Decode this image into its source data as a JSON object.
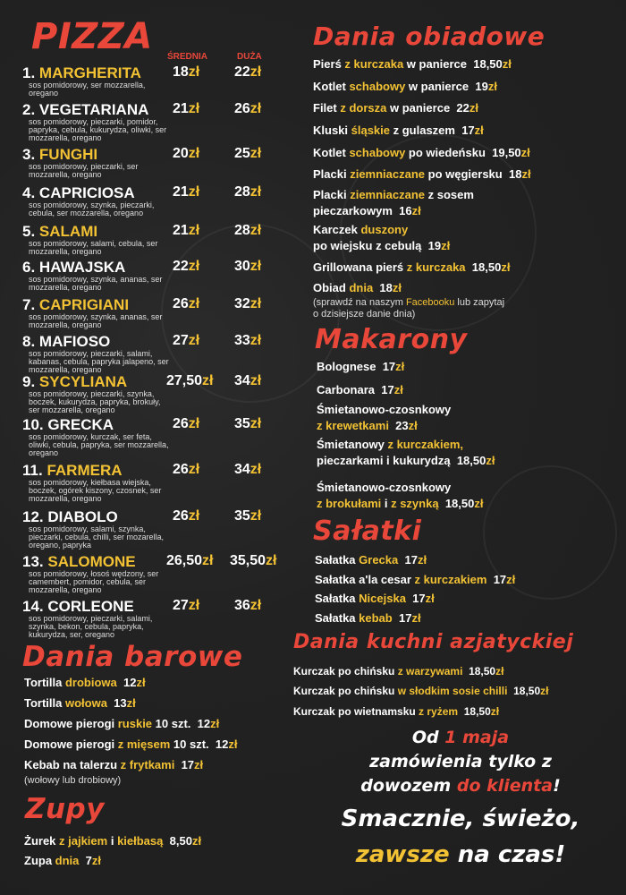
{
  "colors": {
    "accent_red": "#e8473a",
    "highlight_yellow": "#f3c234",
    "background": "#222222"
  },
  "pizza": {
    "title": "PIZZA",
    "col_medium": "ŚREDNIA",
    "col_large": "DUŻA",
    "currency": "zł",
    "items": [
      {
        "num": "1.",
        "name": "MARGHERITA",
        "yellow": true,
        "desc": "sos pomidorowy, ser mozzarella, oregano",
        "medium": "18",
        "large": "22"
      },
      {
        "num": "2.",
        "name": "VEGETARIANA",
        "yellow": false,
        "desc": "sos pomidorowy, pieczarki, pomidor, papryka, cebula, kukurydza, oliwki, ser mozzarella, oregano",
        "medium": "21",
        "large": "26"
      },
      {
        "num": "3.",
        "name": "FUNGHI",
        "yellow": true,
        "desc": "sos pomidorowy, pieczarki, ser mozzarella, oregano",
        "medium": "20",
        "large": "25"
      },
      {
        "num": "4.",
        "name": "CAPRICIOSA",
        "yellow": false,
        "desc": "sos pomidorowy, szynka, pieczarki, cebula, ser mozzarella, oregano",
        "medium": "21",
        "large": "28"
      },
      {
        "num": "5.",
        "name": "SALAMI",
        "yellow": true,
        "desc": "sos pomidorowy, salami, cebula, ser mozzarella, oregano",
        "medium": "21",
        "large": "28"
      },
      {
        "num": "6.",
        "name": "HAWAJSKA",
        "yellow": false,
        "desc": "sos pomidorowy, szynka, ananas, ser mozzarella, oregano",
        "medium": "22",
        "large": "30"
      },
      {
        "num": "7.",
        "name": "CAPRIGIANI",
        "yellow": true,
        "desc": "sos pomidorowy, szynka, ananas, ser mozzarella, oregano",
        "medium": "26",
        "large": "32"
      },
      {
        "num": "8.",
        "name": "MAFIOSO",
        "yellow": false,
        "desc": "sos pomidorowy, pieczarki, salami, kabanas, cebula, papryka jalapeno, ser mozzarella, oregano",
        "medium": "27",
        "large": "33"
      },
      {
        "num": "9.",
        "name": "SYCYLIANA",
        "yellow": true,
        "desc": "sos pomidorowy, pieczarki, szynka, boczek, kukurydza, papryka, brokuły, ser mozzarella, oregano",
        "medium": "27,50",
        "large": "34"
      },
      {
        "num": "10.",
        "name": "GRECKA",
        "yellow": false,
        "desc": "sos pomidorowy, kurczak, ser feta, oliwki, cebula, papryka, ser mozzarella, oregano",
        "medium": "26",
        "large": "35"
      },
      {
        "num": "11.",
        "name": "FARMERA",
        "yellow": true,
        "desc": "sos pomidorowy, kiełbasa wiejska, boczek, ogórek kiszony, czosnek, ser mozzarella, oregano",
        "medium": "26",
        "large": "34"
      },
      {
        "num": "12.",
        "name": "DIABOLO",
        "yellow": false,
        "desc": "sos pomidorowy, salami, szynka, pieczarki, cebula, chilli, ser mozarella, oregano, papryka",
        "medium": "26",
        "large": "35"
      },
      {
        "num": "13.",
        "name": "SALOMONE",
        "yellow": true,
        "desc": "sos pomidorowy, łosoś wędzony, ser camembert, pomidor, cebula, ser mozzarella, oregano",
        "medium": "26,50",
        "large": "35,50"
      },
      {
        "num": "14.",
        "name": "CORLEONE",
        "yellow": false,
        "desc": "sos pomidorowy, pieczarki, salami, szynka, bekon, cebula, papryka, kukurydza, ser, oregano",
        "medium": "27",
        "large": "36"
      }
    ]
  },
  "dania_barowe": {
    "title": "Dania barowe",
    "items": [
      {
        "parts": [
          [
            "Tortilla ",
            0
          ],
          [
            "drobiowa",
            1
          ]
        ],
        "price": "12"
      },
      {
        "parts": [
          [
            "Tortilla ",
            0
          ],
          [
            "wołowa",
            1
          ]
        ],
        "price": "13"
      },
      {
        "parts": [
          [
            "Domowe pierogi ",
            0
          ],
          [
            "ruskie",
            1
          ],
          [
            " 10 szt.",
            0
          ]
        ],
        "price": "12"
      },
      {
        "parts": [
          [
            "Domowe pierogi ",
            0
          ],
          [
            "z mięsem",
            1
          ],
          [
            " 10 szt.",
            0
          ]
        ],
        "price": "12"
      },
      {
        "parts": [
          [
            "Kebab na talerzu ",
            0
          ],
          [
            "z frytkami",
            1
          ]
        ],
        "price": "17"
      }
    ],
    "note": "(wołowy lub drobiowy)"
  },
  "zupy": {
    "title": "Zupy",
    "items": [
      {
        "parts": [
          [
            "Żurek ",
            0
          ],
          [
            "z jajkiem",
            1
          ],
          [
            " i ",
            0
          ],
          [
            "kiełbasą",
            1
          ]
        ],
        "price": "8,50"
      },
      {
        "parts": [
          [
            "Zupa ",
            0
          ],
          [
            "dnia",
            1
          ]
        ],
        "price": "7"
      }
    ]
  },
  "dania_obiadowe": {
    "title": "Dania obiadowe",
    "items": [
      {
        "parts": [
          [
            "Pierś ",
            0
          ],
          [
            "z kurczaka",
            1
          ],
          [
            " w panierce",
            0
          ]
        ],
        "price": "18,50"
      },
      {
        "parts": [
          [
            "Kotlet ",
            0
          ],
          [
            "schabowy",
            1
          ],
          [
            " w panierce",
            0
          ]
        ],
        "price": "19"
      },
      {
        "parts": [
          [
            "Filet ",
            0
          ],
          [
            "z dorsza",
            1
          ],
          [
            " w panierce",
            0
          ]
        ],
        "price": "22"
      },
      {
        "parts": [
          [
            "Kluski ",
            0
          ],
          [
            "śląskie",
            1
          ],
          [
            " z gulaszem",
            0
          ]
        ],
        "price": "17"
      },
      {
        "parts": [
          [
            "Kotlet ",
            0
          ],
          [
            "schabowy",
            1
          ],
          [
            " po wiedeńsku",
            0
          ]
        ],
        "price": "19,50"
      },
      {
        "parts": [
          [
            "Placki ",
            0
          ],
          [
            "ziemniaczane",
            1
          ],
          [
            " po węgiersku",
            0
          ]
        ],
        "price": "18"
      },
      {
        "parts": [
          [
            "Placki ",
            0
          ],
          [
            "ziemniaczane",
            1
          ],
          [
            " z sosem\npieczarkowym",
            0
          ]
        ],
        "price": "16"
      },
      {
        "parts": [
          [
            "Karczek ",
            0
          ],
          [
            "duszony",
            1
          ],
          [
            "\npo wiejsku z cebulą",
            0
          ]
        ],
        "price": "19"
      },
      {
        "parts": [
          [
            "Grillowana pierś ",
            0
          ],
          [
            "z kurczaka",
            1
          ]
        ],
        "price": "18,50"
      },
      {
        "parts": [
          [
            "Obiad ",
            0
          ],
          [
            "dnia",
            1
          ]
        ],
        "price": "18"
      }
    ],
    "note_parts": [
      [
        "(sprawdź na naszym ",
        0
      ],
      [
        "Facebooku",
        1
      ],
      [
        " lub zapytaj\no dzisiejsze danie dnia)",
        0
      ]
    ]
  },
  "makarony": {
    "title": "Makarony",
    "items": [
      {
        "parts": [
          [
            "Bolognese",
            0
          ]
        ],
        "price": "17"
      },
      {
        "parts": [
          [
            "Carbonara",
            0
          ]
        ],
        "price": "17"
      },
      {
        "parts": [
          [
            "Śmietanowo-czosnkowy\n",
            0
          ],
          [
            "z krewetkami",
            1
          ]
        ],
        "price": "23"
      },
      {
        "parts": [
          [
            "Śmietanowy ",
            0
          ],
          [
            "z kurczakiem,",
            1
          ],
          [
            "\npieczarkami i kukurydzą",
            0
          ]
        ],
        "price": "18,50"
      },
      {
        "parts": [
          [
            "Śmietanowo-czosnkowy\n",
            0
          ],
          [
            "z brokułami",
            1
          ],
          [
            " i ",
            0
          ],
          [
            "z szynką",
            1
          ]
        ],
        "price": "18,50"
      }
    ]
  },
  "salatki": {
    "title": "Sałatki",
    "items": [
      {
        "parts": [
          [
            "Sałatka ",
            0
          ],
          [
            "Grecka",
            1
          ]
        ],
        "price": "17"
      },
      {
        "parts": [
          [
            "Sałatka a'la cesar ",
            0
          ],
          [
            "z kurczakiem",
            1
          ]
        ],
        "price": "17"
      },
      {
        "parts": [
          [
            "Sałatka ",
            0
          ],
          [
            "Nicejska",
            1
          ]
        ],
        "price": "17"
      },
      {
        "parts": [
          [
            "Sałatka ",
            0
          ],
          [
            "kebab",
            1
          ]
        ],
        "price": "17"
      }
    ]
  },
  "azjatyckie": {
    "title": "Dania kuchni azjatyckiej",
    "items": [
      {
        "parts": [
          [
            "Kurczak po chińsku ",
            0
          ],
          [
            "z warzywami",
            1
          ]
        ],
        "price": "18,50"
      },
      {
        "parts": [
          [
            "Kurczak po chińsku ",
            0
          ],
          [
            "w słodkim sosie chilli",
            1
          ]
        ],
        "price": "18,50"
      },
      {
        "parts": [
          [
            "Kurczak po wietnamsku ",
            0
          ],
          [
            "z ryżem",
            1
          ]
        ],
        "price": "18,50"
      }
    ]
  },
  "promo": {
    "line1_parts": [
      [
        "Od ",
        0
      ],
      [
        "1 maja",
        2
      ]
    ],
    "line2_parts": [
      [
        "zamówienia tylko z",
        0
      ]
    ],
    "line3_parts": [
      [
        "dowozem ",
        0
      ],
      [
        "do klienta",
        2
      ],
      [
        "!",
        0
      ]
    ],
    "line4_parts": [
      [
        "Smacznie, świeżo,",
        0
      ]
    ],
    "line5_parts": [
      [
        "zawsze",
        1
      ],
      [
        " na czas!",
        0
      ]
    ]
  }
}
